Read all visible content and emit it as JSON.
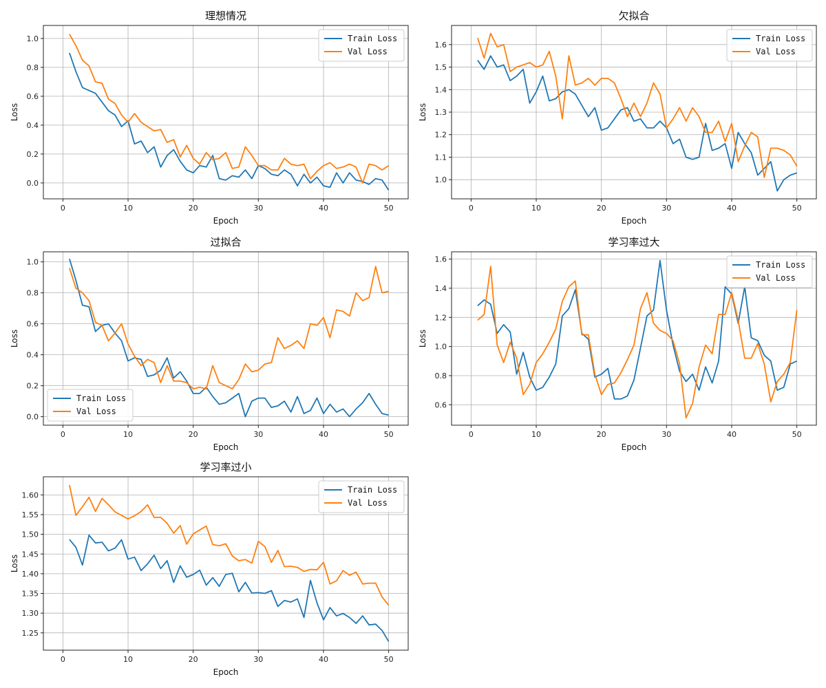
{
  "colors": {
    "train": "#1f77b4",
    "val": "#ff7f0e"
  },
  "chart_data": [
    {
      "type": "line",
      "title": "理想情况",
      "xlabel": "Epoch",
      "ylabel": "Loss",
      "xlim": [
        -3,
        53
      ],
      "ylim": [
        -0.11,
        1.09
      ],
      "xticks": [
        0,
        10,
        20,
        30,
        40,
        50
      ],
      "yticks": [
        0.0,
        0.2,
        0.4,
        0.6,
        0.8,
        1.0
      ],
      "ytick_labels": [
        "0.0",
        "0.2",
        "0.4",
        "0.6",
        "0.8",
        "1.0"
      ],
      "legend": "top-right",
      "grid": true,
      "x": [
        1,
        2,
        3,
        4,
        5,
        6,
        7,
        8,
        9,
        10,
        11,
        12,
        13,
        14,
        15,
        16,
        17,
        18,
        19,
        20,
        21,
        22,
        23,
        24,
        25,
        26,
        27,
        28,
        29,
        30,
        31,
        32,
        33,
        34,
        35,
        36,
        37,
        38,
        39,
        40,
        41,
        42,
        43,
        44,
        45,
        46,
        47,
        48,
        49,
        50
      ],
      "series": [
        {
          "name": "Train Loss",
          "values": [
            0.9,
            0.77,
            0.66,
            0.64,
            0.62,
            0.56,
            0.5,
            0.47,
            0.39,
            0.43,
            0.27,
            0.29,
            0.21,
            0.25,
            0.11,
            0.19,
            0.23,
            0.15,
            0.09,
            0.07,
            0.12,
            0.11,
            0.19,
            0.03,
            0.02,
            0.05,
            0.04,
            0.09,
            0.03,
            0.12,
            0.1,
            0.06,
            0.05,
            0.09,
            0.06,
            -0.02,
            0.06,
            0.0,
            0.04,
            -0.02,
            -0.03,
            0.07,
            0.0,
            0.07,
            0.02,
            0.01,
            -0.01,
            0.03,
            0.02,
            -0.05
          ]
        },
        {
          "name": "Val Loss",
          "values": [
            1.03,
            0.95,
            0.85,
            0.81,
            0.7,
            0.69,
            0.58,
            0.55,
            0.47,
            0.42,
            0.48,
            0.42,
            0.39,
            0.36,
            0.37,
            0.28,
            0.3,
            0.18,
            0.26,
            0.17,
            0.13,
            0.21,
            0.16,
            0.17,
            0.21,
            0.1,
            0.11,
            0.25,
            0.19,
            0.12,
            0.12,
            0.09,
            0.09,
            0.17,
            0.13,
            0.12,
            0.13,
            0.03,
            0.08,
            0.12,
            0.14,
            0.1,
            0.11,
            0.13,
            0.11,
            0.0,
            0.13,
            0.12,
            0.09,
            0.12
          ]
        }
      ]
    },
    {
      "type": "line",
      "title": "欠拟合",
      "xlabel": "Epoch",
      "ylabel": "Loss",
      "xlim": [
        -3,
        53
      ],
      "ylim": [
        0.915,
        1.685
      ],
      "xticks": [
        0,
        10,
        20,
        30,
        40,
        50
      ],
      "yticks": [
        1.0,
        1.1,
        1.2,
        1.3,
        1.4,
        1.5,
        1.6
      ],
      "ytick_labels": [
        "1.0",
        "1.1",
        "1.2",
        "1.3",
        "1.4",
        "1.5",
        "1.6"
      ],
      "legend": "top-right",
      "grid": true,
      "x": [
        1,
        2,
        3,
        4,
        5,
        6,
        7,
        8,
        9,
        10,
        11,
        12,
        13,
        14,
        15,
        16,
        17,
        18,
        19,
        20,
        21,
        22,
        23,
        24,
        25,
        26,
        27,
        28,
        29,
        30,
        31,
        32,
        33,
        34,
        35,
        36,
        37,
        38,
        39,
        40,
        41,
        42,
        43,
        44,
        45,
        46,
        47,
        48,
        49,
        50
      ],
      "series": [
        {
          "name": "Train Loss",
          "values": [
            1.53,
            1.49,
            1.55,
            1.5,
            1.51,
            1.44,
            1.46,
            1.49,
            1.34,
            1.39,
            1.46,
            1.35,
            1.36,
            1.39,
            1.4,
            1.38,
            1.33,
            1.28,
            1.32,
            1.22,
            1.23,
            1.27,
            1.31,
            1.32,
            1.26,
            1.27,
            1.23,
            1.23,
            1.26,
            1.23,
            1.16,
            1.18,
            1.1,
            1.09,
            1.1,
            1.25,
            1.13,
            1.14,
            1.16,
            1.05,
            1.21,
            1.16,
            1.12,
            1.02,
            1.05,
            1.08,
            0.95,
            1.0,
            1.02,
            1.03
          ]
        },
        {
          "name": "Val Loss",
          "values": [
            1.63,
            1.54,
            1.65,
            1.59,
            1.6,
            1.48,
            1.5,
            1.51,
            1.52,
            1.5,
            1.51,
            1.57,
            1.46,
            1.27,
            1.55,
            1.42,
            1.43,
            1.45,
            1.42,
            1.45,
            1.45,
            1.43,
            1.36,
            1.28,
            1.34,
            1.28,
            1.34,
            1.43,
            1.38,
            1.23,
            1.27,
            1.32,
            1.26,
            1.32,
            1.28,
            1.21,
            1.21,
            1.26,
            1.17,
            1.25,
            1.08,
            1.15,
            1.21,
            1.19,
            1.01,
            1.14,
            1.14,
            1.13,
            1.11,
            1.06
          ]
        }
      ]
    },
    {
      "type": "line",
      "title": "过拟合",
      "xlabel": "Epoch",
      "ylabel": "Loss",
      "xlim": [
        -3,
        53
      ],
      "ylim": [
        -0.055,
        1.065
      ],
      "xticks": [
        0,
        10,
        20,
        30,
        40,
        50
      ],
      "yticks": [
        0.0,
        0.2,
        0.4,
        0.6,
        0.8,
        1.0
      ],
      "ytick_labels": [
        "0.0",
        "0.2",
        "0.4",
        "0.6",
        "0.8",
        "1.0"
      ],
      "legend": "bottom-left",
      "grid": true,
      "x": [
        1,
        2,
        3,
        4,
        5,
        6,
        7,
        8,
        9,
        10,
        11,
        12,
        13,
        14,
        15,
        16,
        17,
        18,
        19,
        20,
        21,
        22,
        23,
        24,
        25,
        26,
        27,
        28,
        29,
        30,
        31,
        32,
        33,
        34,
        35,
        36,
        37,
        38,
        39,
        40,
        41,
        42,
        43,
        44,
        45,
        46,
        47,
        48,
        49,
        50
      ],
      "series": [
        {
          "name": "Train Loss",
          "values": [
            1.02,
            0.88,
            0.72,
            0.71,
            0.55,
            0.59,
            0.6,
            0.54,
            0.49,
            0.36,
            0.38,
            0.37,
            0.26,
            0.27,
            0.3,
            0.38,
            0.25,
            0.29,
            0.23,
            0.15,
            0.15,
            0.19,
            0.13,
            0.08,
            0.09,
            0.12,
            0.15,
            0.0,
            0.1,
            0.12,
            0.12,
            0.06,
            0.07,
            0.1,
            0.03,
            0.13,
            0.02,
            0.04,
            0.12,
            0.02,
            0.08,
            0.03,
            0.05,
            0.0,
            0.05,
            0.09,
            0.15,
            0.08,
            0.02,
            0.01
          ]
        },
        {
          "name": "Val Loss",
          "values": [
            0.96,
            0.83,
            0.8,
            0.75,
            0.61,
            0.59,
            0.49,
            0.54,
            0.6,
            0.47,
            0.39,
            0.33,
            0.37,
            0.35,
            0.22,
            0.33,
            0.23,
            0.23,
            0.22,
            0.18,
            0.19,
            0.18,
            0.33,
            0.22,
            0.2,
            0.18,
            0.24,
            0.34,
            0.29,
            0.3,
            0.34,
            0.35,
            0.51,
            0.44,
            0.46,
            0.49,
            0.44,
            0.6,
            0.59,
            0.64,
            0.51,
            0.69,
            0.68,
            0.65,
            0.8,
            0.75,
            0.77,
            0.97,
            0.8,
            0.81
          ]
        }
      ]
    },
    {
      "type": "line",
      "title": "学习率过大",
      "xlabel": "Epoch",
      "ylabel": "Loss",
      "xlim": [
        -3,
        53
      ],
      "ylim": [
        0.46,
        1.65
      ],
      "xticks": [
        0,
        10,
        20,
        30,
        40,
        50
      ],
      "yticks": [
        0.6,
        0.8,
        1.0,
        1.2,
        1.4,
        1.6
      ],
      "ytick_labels": [
        "0.6",
        "0.8",
        "1.0",
        "1.2",
        "1.4",
        "1.6"
      ],
      "legend": "top-right",
      "grid": true,
      "x": [
        1,
        2,
        3,
        4,
        5,
        6,
        7,
        8,
        9,
        10,
        11,
        12,
        13,
        14,
        15,
        16,
        17,
        18,
        19,
        20,
        21,
        22,
        23,
        24,
        25,
        26,
        27,
        28,
        29,
        30,
        31,
        32,
        33,
        34,
        35,
        36,
        37,
        38,
        39,
        40,
        41,
        42,
        43,
        44,
        45,
        46,
        47,
        48,
        49,
        50
      ],
      "series": [
        {
          "name": "Train Loss",
          "values": [
            1.28,
            1.32,
            1.29,
            1.09,
            1.15,
            1.1,
            0.81,
            0.96,
            0.79,
            0.7,
            0.72,
            0.79,
            0.88,
            1.21,
            1.26,
            1.39,
            1.09,
            1.05,
            0.79,
            0.81,
            0.85,
            0.64,
            0.64,
            0.66,
            0.77,
            0.99,
            1.21,
            1.25,
            1.59,
            1.25,
            1.01,
            0.83,
            0.76,
            0.81,
            0.7,
            0.86,
            0.75,
            0.9,
            1.41,
            1.36,
            1.16,
            1.41,
            1.06,
            1.04,
            0.94,
            0.9,
            0.7,
            0.72,
            0.88,
            0.9
          ]
        },
        {
          "name": "Val Loss",
          "values": [
            1.18,
            1.22,
            1.55,
            1.01,
            0.89,
            1.03,
            0.92,
            0.67,
            0.74,
            0.89,
            0.95,
            1.03,
            1.12,
            1.31,
            1.41,
            1.45,
            1.08,
            1.08,
            0.81,
            0.67,
            0.74,
            0.75,
            0.82,
            0.91,
            1.01,
            1.26,
            1.37,
            1.16,
            1.11,
            1.09,
            1.04,
            0.88,
            0.51,
            0.61,
            0.86,
            1.01,
            0.95,
            1.22,
            1.22,
            1.37,
            1.18,
            0.92,
            0.92,
            1.02,
            0.88,
            0.62,
            0.76,
            0.81,
            0.89,
            1.25
          ]
        }
      ]
    },
    {
      "type": "line",
      "title": "学习率过小",
      "xlabel": "Epoch",
      "ylabel": "Loss",
      "xlim": [
        -3,
        53
      ],
      "ylim": [
        1.206,
        1.646
      ],
      "xticks": [
        0,
        10,
        20,
        30,
        40,
        50
      ],
      "yticks": [
        1.25,
        1.3,
        1.35,
        1.4,
        1.45,
        1.5,
        1.55,
        1.6
      ],
      "ytick_labels": [
        "1.25",
        "1.30",
        "1.35",
        "1.40",
        "1.45",
        "1.50",
        "1.55",
        "1.60"
      ],
      "legend": "top-right",
      "grid": true,
      "x": [
        1,
        2,
        3,
        4,
        5,
        6,
        7,
        8,
        9,
        10,
        11,
        12,
        13,
        14,
        15,
        16,
        17,
        18,
        19,
        20,
        21,
        22,
        23,
        24,
        25,
        26,
        27,
        28,
        29,
        30,
        31,
        32,
        33,
        34,
        35,
        36,
        37,
        38,
        39,
        40,
        41,
        42,
        43,
        44,
        45,
        46,
        47,
        48,
        49,
        50
      ],
      "series": [
        {
          "name": "Train Loss",
          "values": [
            1.487,
            1.467,
            1.422,
            1.498,
            1.478,
            1.48,
            1.458,
            1.465,
            1.486,
            1.437,
            1.442,
            1.408,
            1.425,
            1.447,
            1.413,
            1.433,
            1.378,
            1.42,
            1.391,
            1.398,
            1.409,
            1.371,
            1.39,
            1.368,
            1.398,
            1.401,
            1.354,
            1.378,
            1.351,
            1.352,
            1.35,
            1.357,
            1.317,
            1.332,
            1.328,
            1.336,
            1.289,
            1.383,
            1.326,
            1.283,
            1.314,
            1.293,
            1.299,
            1.289,
            1.274,
            1.293,
            1.27,
            1.272,
            1.256,
            1.228
          ]
        },
        {
          "name": "Val Loss",
          "values": [
            1.625,
            1.548,
            1.57,
            1.594,
            1.558,
            1.591,
            1.575,
            1.557,
            1.548,
            1.539,
            1.547,
            1.558,
            1.575,
            1.543,
            1.543,
            1.528,
            1.503,
            1.522,
            1.475,
            1.501,
            1.511,
            1.521,
            1.474,
            1.471,
            1.476,
            1.445,
            1.433,
            1.436,
            1.427,
            1.482,
            1.469,
            1.429,
            1.459,
            1.418,
            1.419,
            1.416,
            1.406,
            1.411,
            1.41,
            1.429,
            1.374,
            1.382,
            1.408,
            1.396,
            1.404,
            1.374,
            1.376,
            1.376,
            1.341,
            1.32
          ]
        }
      ]
    }
  ]
}
